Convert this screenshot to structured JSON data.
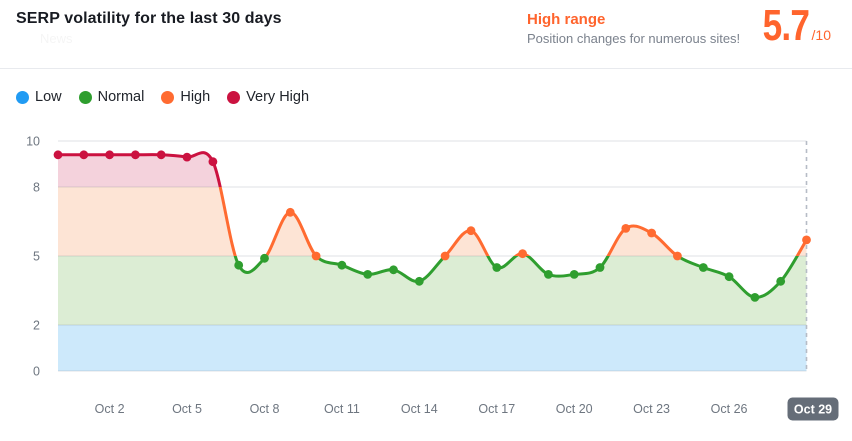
{
  "header": {
    "title": "SERP volatility for the last 30 days",
    "faint_label": "News",
    "range_label": "High range",
    "range_description": "Position changes for numerous sites!",
    "score": "5.7",
    "score_suffix": "/10",
    "accent_color": "#ff642d"
  },
  "legend": {
    "items": [
      {
        "label": "Low",
        "color": "#219bf3"
      },
      {
        "label": "Normal",
        "color": "#2f9e2f"
      },
      {
        "label": "High",
        "color": "#ff6b31"
      },
      {
        "label": "Very High",
        "color": "#cb1240"
      }
    ]
  },
  "chart_data": {
    "type": "area",
    "title": "SERP volatility for the last 30 days",
    "x": [
      "Sep 30",
      "Oct 1",
      "Oct 2",
      "Oct 3",
      "Oct 4",
      "Oct 5",
      "Oct 6",
      "Oct 7",
      "Oct 8",
      "Oct 9",
      "Oct 10",
      "Oct 11",
      "Oct 12",
      "Oct 13",
      "Oct 14",
      "Oct 15",
      "Oct 16",
      "Oct 17",
      "Oct 18",
      "Oct 19",
      "Oct 20",
      "Oct 21",
      "Oct 22",
      "Oct 23",
      "Oct 24",
      "Oct 25",
      "Oct 26",
      "Oct 27",
      "Oct 28",
      "Oct 29"
    ],
    "values": [
      9.4,
      9.4,
      9.4,
      9.4,
      9.4,
      9.3,
      9.1,
      4.6,
      4.9,
      6.9,
      5.0,
      4.6,
      4.2,
      4.4,
      3.9,
      5.0,
      6.1,
      4.5,
      5.1,
      4.2,
      4.2,
      4.5,
      6.2,
      6.0,
      5.0,
      4.5,
      4.1,
      3.2,
      3.9,
      5.7
    ],
    "ylim": [
      0,
      10
    ],
    "yticks": [
      0,
      2,
      5,
      8,
      10
    ],
    "xticks": [
      {
        "label": "Oct 2",
        "index": 2
      },
      {
        "label": "Oct 5",
        "index": 5
      },
      {
        "label": "Oct 8",
        "index": 8
      },
      {
        "label": "Oct 11",
        "index": 11
      },
      {
        "label": "Oct 14",
        "index": 14
      },
      {
        "label": "Oct 17",
        "index": 17
      },
      {
        "label": "Oct 20",
        "index": 20
      },
      {
        "label": "Oct 23",
        "index": 23
      },
      {
        "label": "Oct 26",
        "index": 26
      },
      {
        "label": "Oct 29",
        "index": 29,
        "current": true
      }
    ],
    "zones": [
      {
        "name": "low",
        "min": 0,
        "max": 2,
        "line": "#219bf3",
        "fill": "#cde9fb"
      },
      {
        "name": "normal",
        "min": 2,
        "max": 5,
        "line": "#2f9e2f",
        "fill": "#dcedd4"
      },
      {
        "name": "high",
        "min": 5,
        "max": 8,
        "line": "#ff6b31",
        "fill": "#fde4d5"
      },
      {
        "name": "very_high",
        "min": 8,
        "max": 10,
        "line": "#cb1240",
        "fill": "#f4d2dc"
      }
    ],
    "grid": true,
    "legend_position": "top-left",
    "current": {
      "label": "Oct 29",
      "value": 5.7
    }
  }
}
